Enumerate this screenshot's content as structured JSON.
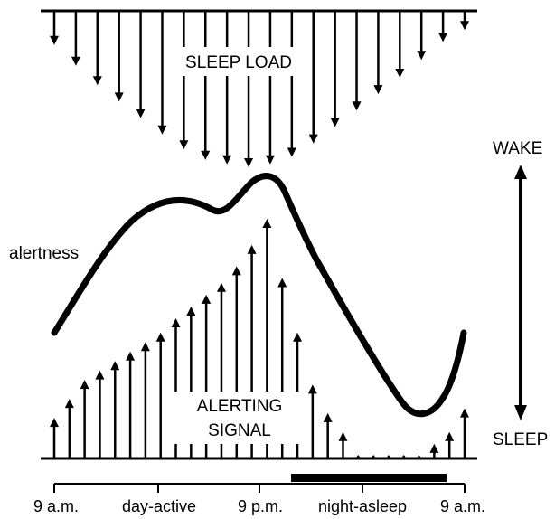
{
  "labels": {
    "sleep_load": "SLEEP LOAD",
    "alerting_line1": "ALERTING",
    "alerting_line2": "SIGNAL",
    "alertness": "alertness",
    "wake": "WAKE",
    "sleep": "SLEEP"
  },
  "axis": {
    "ticks": [
      "9 a.m.",
      "day-active",
      "9 p.m.",
      "night-asleep",
      "9 a.m."
    ]
  },
  "sleep_load_arrows": [
    0.18,
    0.32,
    0.45,
    0.56,
    0.67,
    0.78,
    0.88,
    0.95,
    0.98,
    1.0,
    0.98,
    0.93,
    0.84,
    0.73,
    0.62,
    0.51,
    0.4,
    0.28,
    0.16,
    0.08
  ],
  "alerting_arrows": [
    0.16,
    0.24,
    0.32,
    0.36,
    0.4,
    0.44,
    0.48,
    0.52,
    0.58,
    0.63,
    0.68,
    0.73,
    0.8,
    0.89,
    1.0,
    0.75,
    0.52,
    0.3,
    0.18,
    0.1,
    0.03,
    0.01,
    0.0,
    0.0,
    0.0,
    0.05,
    0.1,
    0.2
  ],
  "colors": {
    "ink": "#000000",
    "background": "#ffffff"
  },
  "icons": {
    "range_arrow": "double-headed-vertical-arrow-icon"
  }
}
